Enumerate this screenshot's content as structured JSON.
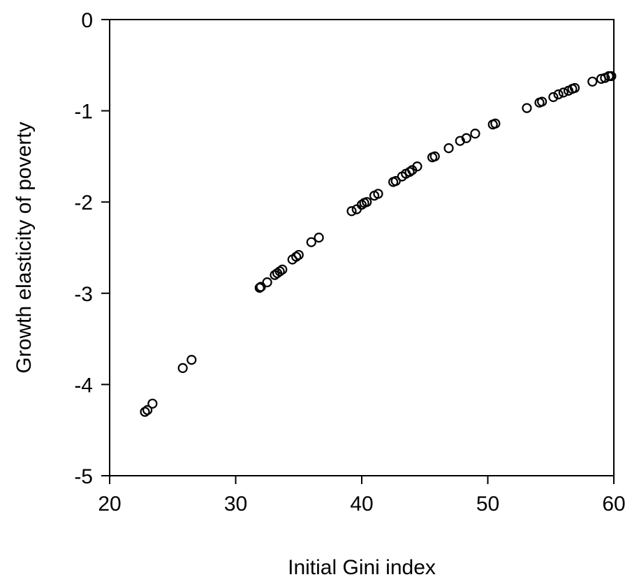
{
  "chart_data": {
    "type": "scatter",
    "title": "",
    "xlabel": "Initial Gini index",
    "ylabel": "Growth elasticity of poverty",
    "xlim": [
      20,
      60
    ],
    "ylim": [
      -5,
      0
    ],
    "xticks": [
      20,
      30,
      40,
      50,
      60
    ],
    "yticks": [
      0,
      -1,
      -2,
      -3,
      -4,
      -5
    ],
    "xtick_labels": [
      "20",
      "30",
      "40",
      "50",
      "60"
    ],
    "ytick_labels": [
      "0",
      "-1",
      "-2",
      "-3",
      "-4",
      "-5"
    ],
    "grid": false,
    "legend": "none",
    "marker": "hollow-circle",
    "marker_color": "#000000",
    "points": [
      {
        "x": 22.8,
        "y": -4.3
      },
      {
        "x": 23.0,
        "y": -4.28
      },
      {
        "x": 23.4,
        "y": -4.21
      },
      {
        "x": 25.8,
        "y": -3.82
      },
      {
        "x": 26.5,
        "y": -3.73
      },
      {
        "x": 31.9,
        "y": -2.94
      },
      {
        "x": 32.0,
        "y": -2.93
      },
      {
        "x": 32.5,
        "y": -2.88
      },
      {
        "x": 33.1,
        "y": -2.8
      },
      {
        "x": 33.3,
        "y": -2.78
      },
      {
        "x": 33.5,
        "y": -2.76
      },
      {
        "x": 33.7,
        "y": -2.74
      },
      {
        "x": 34.5,
        "y": -2.63
      },
      {
        "x": 34.8,
        "y": -2.6
      },
      {
        "x": 35.0,
        "y": -2.58
      },
      {
        "x": 36.0,
        "y": -2.44
      },
      {
        "x": 36.6,
        "y": -2.39
      },
      {
        "x": 39.2,
        "y": -2.1
      },
      {
        "x": 39.6,
        "y": -2.08
      },
      {
        "x": 40.0,
        "y": -2.03
      },
      {
        "x": 40.2,
        "y": -2.01
      },
      {
        "x": 40.4,
        "y": -2.0
      },
      {
        "x": 41.0,
        "y": -1.93
      },
      {
        "x": 41.3,
        "y": -1.91
      },
      {
        "x": 42.5,
        "y": -1.78
      },
      {
        "x": 42.7,
        "y": -1.77
      },
      {
        "x": 43.2,
        "y": -1.72
      },
      {
        "x": 43.5,
        "y": -1.69
      },
      {
        "x": 43.8,
        "y": -1.67
      },
      {
        "x": 44.0,
        "y": -1.65
      },
      {
        "x": 44.4,
        "y": -1.61
      },
      {
        "x": 45.6,
        "y": -1.51
      },
      {
        "x": 45.8,
        "y": -1.5
      },
      {
        "x": 46.9,
        "y": -1.41
      },
      {
        "x": 47.8,
        "y": -1.33
      },
      {
        "x": 48.3,
        "y": -1.3
      },
      {
        "x": 49.0,
        "y": -1.25
      },
      {
        "x": 50.4,
        "y": -1.15
      },
      {
        "x": 50.6,
        "y": -1.14
      },
      {
        "x": 53.1,
        "y": -0.97
      },
      {
        "x": 54.1,
        "y": -0.91
      },
      {
        "x": 54.3,
        "y": -0.9
      },
      {
        "x": 55.2,
        "y": -0.85
      },
      {
        "x": 55.6,
        "y": -0.82
      },
      {
        "x": 56.0,
        "y": -0.8
      },
      {
        "x": 56.4,
        "y": -0.78
      },
      {
        "x": 56.7,
        "y": -0.76
      },
      {
        "x": 56.9,
        "y": -0.75
      },
      {
        "x": 58.3,
        "y": -0.68
      },
      {
        "x": 59.0,
        "y": -0.65
      },
      {
        "x": 59.3,
        "y": -0.64
      },
      {
        "x": 59.6,
        "y": -0.62
      },
      {
        "x": 59.8,
        "y": -0.62
      }
    ]
  }
}
